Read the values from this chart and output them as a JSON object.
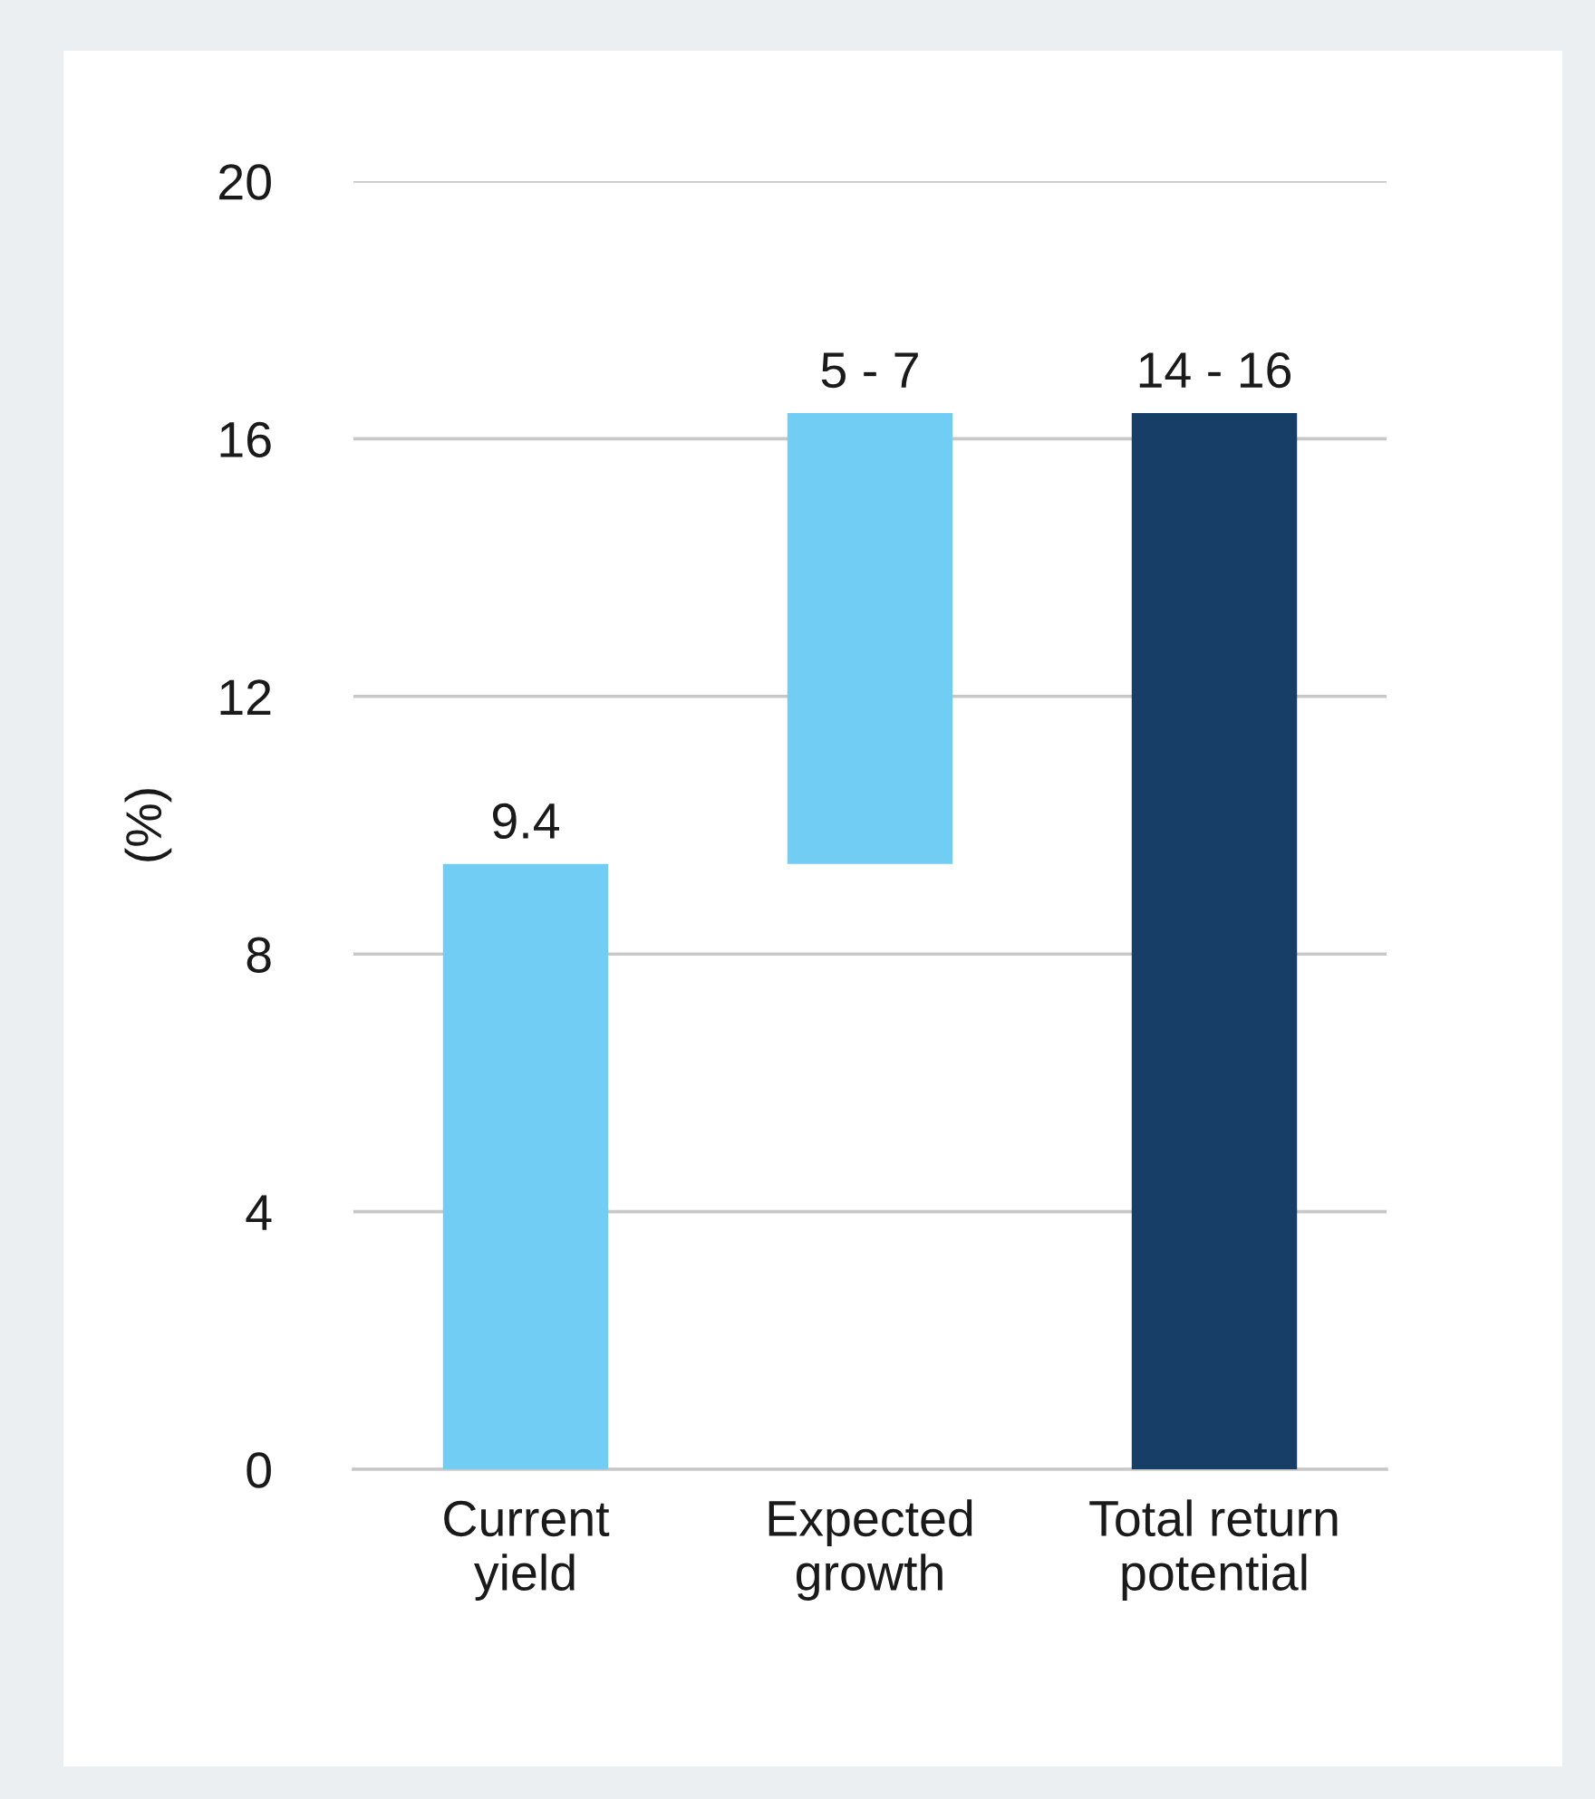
{
  "chart_data": {
    "type": "bar",
    "ylabel": "(%)",
    "categories": [
      "Current\nyield",
      "Expected\ngrowth",
      "Total return\npotential"
    ],
    "values": [
      9.4,
      7.0,
      16.4
    ],
    "base": [
      0,
      9.4,
      0
    ],
    "colors": [
      "#72cdf4",
      "#72cdf4",
      "#163e67"
    ],
    "value_labels": [
      "9.4",
      null,
      null
    ],
    "annotations": [
      {
        "text": "5 - 7",
        "x": "Expected\ngrowth",
        "y": 16.4
      },
      {
        "text": "14 - 16",
        "x": "Total return\npotential",
        "y": 16.4
      }
    ],
    "ylim": [
      0,
      20
    ],
    "yticks": [
      0,
      4,
      8,
      12,
      16,
      20
    ],
    "grid": "y",
    "legend": false
  }
}
